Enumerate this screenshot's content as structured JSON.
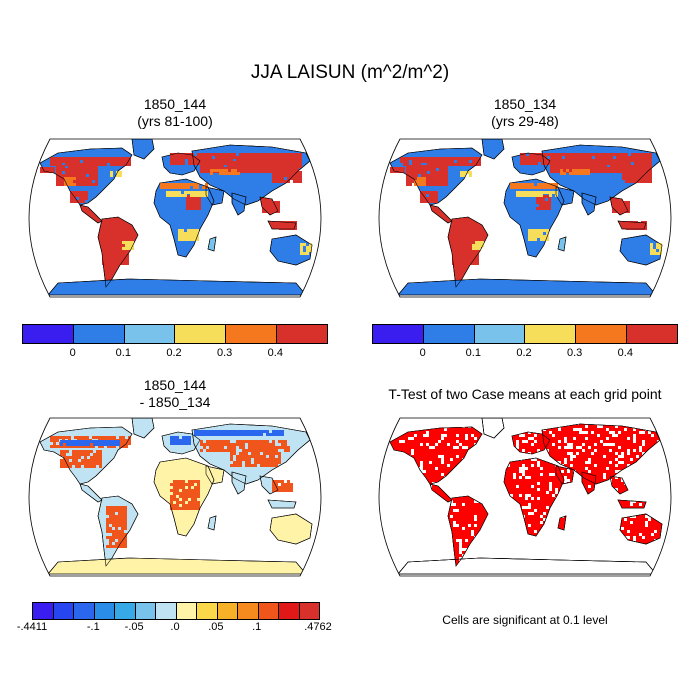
{
  "figure": {
    "title": "JJA LAISUN (m^2/m^2)",
    "panels": [
      {
        "title_line1": "1850_144",
        "title_line2": "(yrs 81-100)"
      },
      {
        "title_line1": "1850_134",
        "title_line2": "(yrs 29-48)"
      },
      {
        "title_line1": "1850_144",
        "title_line2": "- 1850_134"
      },
      {
        "title_line1": "T-Test of two Case means at each grid point",
        "title_line2": ""
      }
    ],
    "note": "Cells are significant at 0.1 level"
  },
  "legend_top": {
    "colors": [
      "#3a1ef0",
      "#2f7ee8",
      "#78c2ec",
      "#f6de5a",
      "#f5781e",
      "#d8302a"
    ],
    "tick_labels": [
      "0",
      "0.1",
      "0.2",
      "0.3",
      "0.4"
    ]
  },
  "legend_diff": {
    "colors": [
      "#3a1ef0",
      "#2846f0",
      "#2a66ee",
      "#2a8ee8",
      "#36a9e6",
      "#78c2ec",
      "#bfe3f2",
      "#fff3a8",
      "#fbd74a",
      "#f6b128",
      "#f58a1e",
      "#f0561c",
      "#e01818",
      "#d8302a"
    ],
    "tick_labels": [
      "-.4411",
      "-.1",
      "-.05",
      ".0",
      ".05",
      ".1",
      ".4762"
    ]
  },
  "colors": {
    "ocean": "#ffffff",
    "outline": "#000000",
    "significant": "#ff0000"
  }
}
